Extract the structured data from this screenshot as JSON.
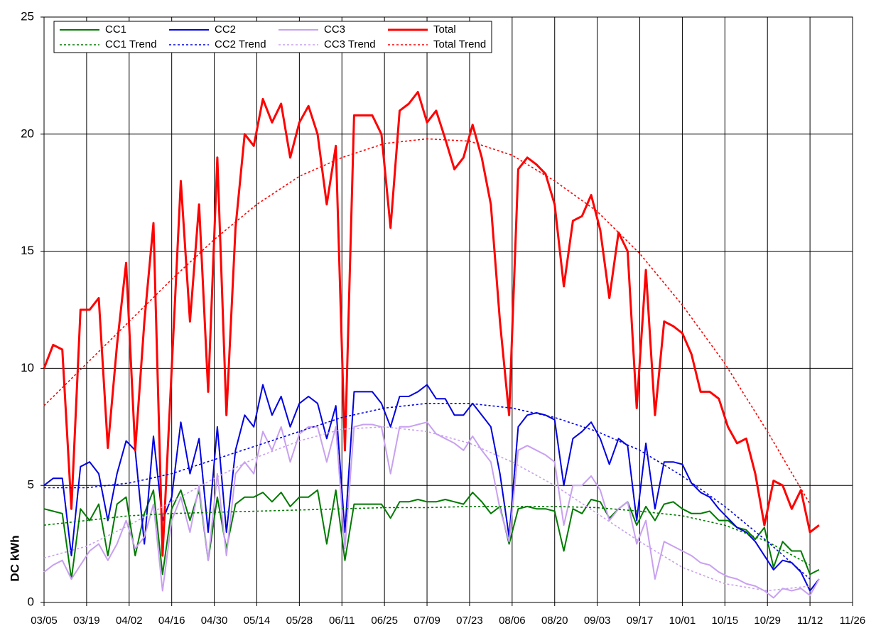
{
  "chart_data": {
    "type": "line",
    "y_label": "DC kWh",
    "x": [
      "03/05",
      "03/08",
      "03/11",
      "03/14",
      "03/17",
      "03/20",
      "03/23",
      "03/26",
      "03/29",
      "04/01",
      "04/04",
      "04/07",
      "04/10",
      "04/13",
      "04/16",
      "04/19",
      "04/22",
      "04/25",
      "04/28",
      "05/01",
      "05/04",
      "05/07",
      "05/10",
      "05/13",
      "05/16",
      "05/19",
      "05/22",
      "05/25",
      "05/28",
      "05/31",
      "06/03",
      "06/06",
      "06/09",
      "06/12",
      "06/15",
      "06/18",
      "06/21",
      "06/24",
      "06/27",
      "06/30",
      "07/03",
      "07/06",
      "07/09",
      "07/12",
      "07/15",
      "07/18",
      "07/21",
      "07/24",
      "07/27",
      "07/30",
      "08/02",
      "08/05",
      "08/08",
      "08/11",
      "08/14",
      "08/17",
      "08/20",
      "08/23",
      "08/26",
      "08/29",
      "09/01",
      "09/04",
      "09/07",
      "09/10",
      "09/13",
      "09/16",
      "09/19",
      "09/22",
      "09/25",
      "09/28",
      "10/01",
      "10/04",
      "10/07",
      "10/10",
      "10/13",
      "10/16",
      "10/19",
      "10/22",
      "10/25",
      "10/28",
      "10/31",
      "11/03",
      "11/06",
      "11/09",
      "11/12",
      "11/15"
    ],
    "series": [
      {
        "name": "CC1",
        "color": "#007a00",
        "style": "solid",
        "values": [
          4,
          3.9,
          3.8,
          1,
          4,
          3.5,
          4.2,
          2,
          4.2,
          4.5,
          2,
          3.8,
          4.8,
          1.2,
          4,
          4.8,
          3.5,
          4.8,
          1.8,
          4.5,
          2.3,
          4.2,
          4.5,
          4.5,
          4.7,
          4.3,
          4.7,
          4.1,
          4.5,
          4.5,
          4.8,
          2.5,
          4.8,
          1.8,
          4.2,
          4.2,
          4.2,
          4.2,
          3.6,
          4.3,
          4.3,
          4.4,
          4.3,
          4.3,
          4.4,
          4.3,
          4.2,
          4.7,
          4.3,
          3.8,
          4.1,
          2.5,
          4,
          4.1,
          4,
          4,
          3.9,
          2.2,
          4,
          3.8,
          4.4,
          4.3,
          3.6,
          4,
          4.3,
          3.3,
          4.1,
          3.5,
          4.2,
          4.3,
          4,
          3.8,
          3.8,
          3.9,
          3.5,
          3.5,
          3.2,
          3.1,
          2.7,
          3.2,
          1.5,
          2.6,
          2.2,
          2.2,
          1.2,
          1.4
        ]
      },
      {
        "name": "CC2",
        "color": "#0000e0",
        "style": "solid",
        "values": [
          5,
          5.3,
          5.3,
          2,
          5.8,
          6,
          5.5,
          3.5,
          5.5,
          6.9,
          6.5,
          2.5,
          7.1,
          3.5,
          4.5,
          7.7,
          5.5,
          7,
          3,
          7.5,
          3,
          6.5,
          8,
          7.5,
          9.3,
          8,
          8.8,
          7.5,
          8.5,
          8.8,
          8.5,
          7,
          8.4,
          3,
          9,
          9,
          9,
          8.5,
          7.5,
          8.8,
          8.8,
          9,
          9.3,
          8.7,
          8.7,
          8,
          8,
          8.5,
          8,
          7.5,
          5.5,
          2.8,
          7.5,
          8,
          8.1,
          8,
          7.8,
          5,
          7,
          7.3,
          7.7,
          7,
          5.9,
          7,
          6.7,
          3.5,
          6.8,
          4,
          6,
          6,
          5.9,
          5.1,
          4.7,
          4.5,
          4,
          3.6,
          3.2,
          3,
          2.6,
          2,
          1.4,
          1.8,
          1.7,
          1.3,
          0.5,
          1
        ]
      },
      {
        "name": "CC3",
        "color": "#c8a0f0",
        "style": "solid",
        "values": [
          1.3,
          1.6,
          1.8,
          1,
          1.6,
          2.2,
          2.5,
          1.8,
          2.5,
          3.5,
          2.3,
          2.8,
          4.2,
          0.5,
          3.5,
          4.5,
          3,
          5,
          1.8,
          5.5,
          2,
          5.5,
          6,
          5.5,
          7.3,
          6.5,
          7.5,
          6,
          7.2,
          7.5,
          7.5,
          6,
          7.5,
          2.3,
          7.5,
          7.6,
          7.6,
          7.5,
          5.5,
          7.5,
          7.5,
          7.6,
          7.7,
          7.2,
          7,
          6.8,
          6.5,
          7.1,
          6.5,
          6,
          4,
          2.6,
          6.5,
          6.7,
          6.5,
          6.3,
          6,
          3.3,
          5,
          5,
          5.4,
          4.8,
          3.5,
          4,
          4.3,
          2.5,
          3.5,
          1,
          2.6,
          2.4,
          2.2,
          2,
          1.7,
          1.6,
          1.3,
          1.1,
          1,
          0.8,
          0.7,
          0.5,
          0.2,
          0.6,
          0.5,
          0.6,
          0.3,
          1
        ]
      },
      {
        "name": "Total",
        "color": "#ff0000",
        "style": "thick",
        "values": [
          10,
          11,
          10.8,
          4,
          12.5,
          12.5,
          13,
          6.6,
          11,
          14.5,
          6.5,
          12,
          16.2,
          2,
          10,
          18,
          12,
          17,
          9,
          19,
          8,
          16,
          20,
          19.5,
          21.5,
          20.5,
          21.3,
          19,
          20.5,
          21.2,
          20,
          17,
          19.5,
          6.5,
          20.8,
          20.8,
          20.8,
          20,
          16,
          21,
          21.3,
          21.8,
          20.5,
          21,
          19.8,
          18.5,
          19,
          20.4,
          19,
          17,
          12,
          8,
          18.5,
          19,
          18.7,
          18.3,
          17,
          13.5,
          16.3,
          16.5,
          17.4,
          15.9,
          13,
          15.8,
          15,
          8.3,
          14.2,
          8,
          12,
          11.8,
          11.5,
          10.6,
          9,
          9,
          8.7,
          7.5,
          6.8,
          7,
          5.5,
          3.3,
          5.2,
          5,
          4,
          4.8,
          3,
          3.3
        ]
      },
      {
        "name": "CC1 Trend",
        "color": "#007a00",
        "style": "dotted",
        "x": [
          "03/05",
          "03/19",
          "04/02",
          "04/16",
          "04/30",
          "05/14",
          "05/28",
          "06/11",
          "06/25",
          "07/09",
          "07/23",
          "08/06",
          "08/20",
          "09/03",
          "09/17",
          "10/01",
          "10/15",
          "10/29",
          "11/12"
        ],
        "values": [
          3.3,
          3.5,
          3.7,
          3.8,
          3.85,
          3.9,
          3.95,
          4,
          4.05,
          4.05,
          4.1,
          4.1,
          4.1,
          4.05,
          3.9,
          3.7,
          3.3,
          2.6,
          1.6
        ]
      },
      {
        "name": "CC2 Trend",
        "color": "#0000e0",
        "style": "dotted",
        "x": [
          "03/05",
          "03/19",
          "04/02",
          "04/16",
          "04/30",
          "05/14",
          "05/28",
          "06/11",
          "06/25",
          "07/09",
          "07/23",
          "08/06",
          "08/20",
          "09/03",
          "09/17",
          "10/01",
          "10/15",
          "10/29",
          "11/12"
        ],
        "values": [
          4.9,
          4.9,
          5.1,
          5.5,
          6.1,
          6.7,
          7.3,
          7.9,
          8.3,
          8.5,
          8.5,
          8.3,
          7.9,
          7.3,
          6.5,
          5.4,
          4.1,
          2.6,
          1
        ]
      },
      {
        "name": "CC3 Trend",
        "color": "#c8a0f0",
        "style": "dotted",
        "x": [
          "03/05",
          "03/19",
          "04/02",
          "04/16",
          "04/30",
          "05/14",
          "05/28",
          "06/11",
          "06/25",
          "07/09",
          "07/23",
          "08/06",
          "08/20",
          "09/03",
          "09/17",
          "10/01",
          "10/15",
          "10/29",
          "11/12"
        ],
        "values": [
          1.9,
          2.4,
          3.3,
          4.3,
          5.3,
          6.2,
          6.9,
          7.4,
          7.5,
          7.3,
          6.8,
          6,
          5,
          3.8,
          2.6,
          1.5,
          0.8,
          0.5,
          0.7
        ]
      },
      {
        "name": "Total Trend",
        "color": "#ff0000",
        "style": "dotted",
        "x": [
          "03/05",
          "03/19",
          "04/02",
          "04/16",
          "04/30",
          "05/14",
          "05/28",
          "06/11",
          "06/25",
          "07/09",
          "07/23",
          "08/06",
          "08/20",
          "09/03",
          "09/17",
          "10/01",
          "10/15",
          "10/29",
          "11/12"
        ],
        "values": [
          8.4,
          10.2,
          12,
          13.8,
          15.5,
          17,
          18.2,
          19,
          19.6,
          19.8,
          19.7,
          19.1,
          18,
          16.7,
          14.9,
          12.7,
          10.2,
          7.3,
          4.2
        ]
      }
    ],
    "xlim": [
      "03/05",
      "11/26"
    ],
    "xticks": [
      "03/05",
      "03/19",
      "04/02",
      "04/16",
      "04/30",
      "05/14",
      "05/28",
      "06/11",
      "06/25",
      "07/09",
      "07/23",
      "08/06",
      "08/20",
      "09/03",
      "09/17",
      "10/01",
      "10/15",
      "10/29",
      "11/12",
      "11/26"
    ],
    "ylim": [
      0,
      25
    ],
    "yticks": [
      0,
      5,
      10,
      15,
      20,
      25
    ],
    "grid": true,
    "legend": "top-left"
  }
}
